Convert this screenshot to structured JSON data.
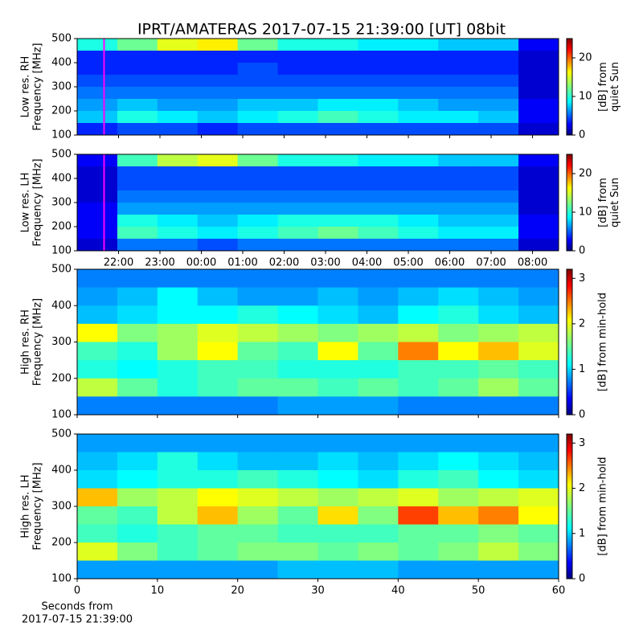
{
  "title": "IPRT/AMATERAS 2017-07-15 21:39:00 [UT]    08bit",
  "chart_data": [
    {
      "type": "heatmap",
      "colormap": "jet",
      "ylabel": [
        "Low res. RH",
        "Frequency [MHz]"
      ],
      "xlim": [
        21.0,
        32.63
      ],
      "ylim": [
        100,
        500
      ],
      "yticks": [
        100,
        200,
        300,
        400,
        500
      ],
      "marker_x": 21.65,
      "marker_color": "#ff00ff",
      "clim": [
        0,
        25
      ],
      "cticks": [
        0,
        10,
        20
      ],
      "colorbar_label": [
        "[dB] from",
        "quiet Sun"
      ],
      "values": [
        [
          10,
          12,
          15,
          16,
          12,
          10,
          10,
          9,
          9,
          8,
          8,
          3
        ],
        [
          4,
          4,
          4,
          4,
          4,
          4,
          4,
          4,
          4,
          4,
          4,
          2
        ],
        [
          4,
          4,
          4,
          4,
          5,
          4,
          4,
          4,
          4,
          4,
          4,
          2
        ],
        [
          5,
          5,
          5,
          5,
          5,
          5,
          5,
          5,
          5,
          5,
          5,
          2
        ],
        [
          6,
          6,
          6,
          6,
          6,
          6,
          6,
          6,
          6,
          6,
          6,
          2
        ],
        [
          7,
          8,
          7,
          7,
          8,
          8,
          9,
          9,
          8,
          7,
          7,
          3
        ],
        [
          8,
          10,
          9,
          8,
          9,
          10,
          11,
          10,
          9,
          9,
          8,
          3
        ],
        [
          4,
          5,
          5,
          4,
          5,
          5,
          5,
          5,
          5,
          5,
          5,
          2
        ]
      ]
    },
    {
      "type": "heatmap",
      "colormap": "jet",
      "ylabel": [
        "Low res. LH",
        "Frequency [MHz]"
      ],
      "xlim": [
        21.0,
        32.63
      ],
      "ylim": [
        100,
        500
      ],
      "yticks": [
        100,
        200,
        300,
        400,
        500
      ],
      "xticks": [
        {
          "value": 22,
          "label": "22:00"
        },
        {
          "value": 23,
          "label": "23:00"
        },
        {
          "value": 24,
          "label": "00:00"
        },
        {
          "value": 25,
          "label": "01:00"
        },
        {
          "value": 26,
          "label": "02:00"
        },
        {
          "value": 27,
          "label": "03:00"
        },
        {
          "value": 28,
          "label": "04:00"
        },
        {
          "value": 29,
          "label": "05:00"
        },
        {
          "value": 30,
          "label": "06:00"
        },
        {
          "value": 31,
          "label": "07:00"
        },
        {
          "value": 32,
          "label": "08:00"
        }
      ],
      "marker_x": 21.65,
      "marker_color": "#ff00ff",
      "clim": [
        0,
        25
      ],
      "cticks": [
        0,
        10,
        20
      ],
      "colorbar_label": [
        "[dB] from",
        "quiet Sun"
      ],
      "values": [
        [
          3,
          11,
          14,
          15,
          12,
          10,
          10,
          9,
          9,
          8,
          8,
          3
        ],
        [
          2,
          5,
          5,
          5,
          5,
          5,
          5,
          5,
          5,
          5,
          5,
          2
        ],
        [
          2,
          5,
          5,
          5,
          5,
          5,
          5,
          5,
          5,
          5,
          5,
          2
        ],
        [
          2,
          6,
          6,
          6,
          6,
          6,
          6,
          6,
          6,
          6,
          6,
          2
        ],
        [
          3,
          7,
          7,
          7,
          7,
          7,
          7,
          7,
          7,
          7,
          7,
          2
        ],
        [
          3,
          10,
          9,
          8,
          9,
          10,
          10,
          10,
          9,
          8,
          8,
          3
        ],
        [
          3,
          11,
          10,
          9,
          10,
          11,
          12,
          11,
          10,
          9,
          9,
          3
        ],
        [
          2,
          6,
          6,
          5,
          6,
          6,
          6,
          6,
          6,
          6,
          6,
          2
        ]
      ]
    },
    {
      "type": "heatmap",
      "colormap": "jet",
      "ylabel": [
        "High res. RH",
        "Frequency [MHz]"
      ],
      "xlim": [
        0,
        60
      ],
      "ylim": [
        100,
        500
      ],
      "yticks": [
        100,
        200,
        300,
        400,
        500
      ],
      "clim": [
        0,
        3.2
      ],
      "cticks": [
        0,
        1,
        2,
        3
      ],
      "colorbar_label": [
        "[dB] from min-hold"
      ],
      "values": [
        [
          0.8,
          0.8,
          0.8,
          0.8,
          0.8,
          0.8,
          0.8,
          0.8,
          0.8,
          0.8,
          0.8,
          0.8
        ],
        [
          0.9,
          1.0,
          1.2,
          1.0,
          0.9,
          0.9,
          1.0,
          0.9,
          1.0,
          1.1,
          1.0,
          0.9
        ],
        [
          1.0,
          1.1,
          1.2,
          1.2,
          1.3,
          1.2,
          1.1,
          1.0,
          1.2,
          1.3,
          1.1,
          1.0
        ],
        [
          2.0,
          1.6,
          1.7,
          1.9,
          1.8,
          1.7,
          1.6,
          1.7,
          1.8,
          1.6,
          1.7,
          1.8
        ],
        [
          1.4,
          1.3,
          1.7,
          2.0,
          1.5,
          1.4,
          2.0,
          1.5,
          2.4,
          2.0,
          2.2,
          1.9
        ],
        [
          1.3,
          1.2,
          1.3,
          1.4,
          1.4,
          1.3,
          1.3,
          1.3,
          1.4,
          1.4,
          1.5,
          1.4
        ],
        [
          1.8,
          1.5,
          1.3,
          1.4,
          1.5,
          1.5,
          1.4,
          1.5,
          1.4,
          1.5,
          1.7,
          1.5
        ],
        [
          0.8,
          0.8,
          0.8,
          0.8,
          0.8,
          0.9,
          0.9,
          0.9,
          0.8,
          0.8,
          0.8,
          0.8
        ]
      ]
    },
    {
      "type": "heatmap",
      "colormap": "jet",
      "ylabel": [
        "High res. LH",
        "Frequency [MHz]"
      ],
      "xlim": [
        0,
        60
      ],
      "ylim": [
        100,
        500
      ],
      "yticks": [
        100,
        200,
        300,
        400,
        500
      ],
      "xticks": [
        0,
        10,
        20,
        30,
        40,
        50,
        60
      ],
      "xlabel": [
        "Seconds from",
        "2017-07-15 21:39:00"
      ],
      "clim": [
        0,
        3.2
      ],
      "cticks": [
        0,
        1,
        2,
        3
      ],
      "colorbar_label": [
        "[dB] from min-hold"
      ],
      "values": [
        [
          0.9,
          0.9,
          0.9,
          0.9,
          0.9,
          0.9,
          0.9,
          0.9,
          0.9,
          0.9,
          0.9,
          0.9
        ],
        [
          1.0,
          1.1,
          1.3,
          1.1,
          1.0,
          1.0,
          1.1,
          1.0,
          1.1,
          1.2,
          1.1,
          1.0
        ],
        [
          1.1,
          1.2,
          1.3,
          1.3,
          1.4,
          1.3,
          1.2,
          1.1,
          1.3,
          1.4,
          1.2,
          1.1
        ],
        [
          2.2,
          1.7,
          1.8,
          2.0,
          1.9,
          1.8,
          1.7,
          1.8,
          1.9,
          1.7,
          1.8,
          1.9
        ],
        [
          1.5,
          1.4,
          1.8,
          2.2,
          1.7,
          1.5,
          2.1,
          1.6,
          2.6,
          2.2,
          2.4,
          2.0
        ],
        [
          1.4,
          1.3,
          1.4,
          1.5,
          1.5,
          1.4,
          1.4,
          1.4,
          1.5,
          1.5,
          1.6,
          1.5
        ],
        [
          1.9,
          1.6,
          1.4,
          1.5,
          1.6,
          1.6,
          1.5,
          1.6,
          1.5,
          1.6,
          1.8,
          1.6
        ],
        [
          0.9,
          0.9,
          0.9,
          0.9,
          0.9,
          1.0,
          1.0,
          1.0,
          0.9,
          0.9,
          0.9,
          0.9
        ]
      ]
    }
  ]
}
